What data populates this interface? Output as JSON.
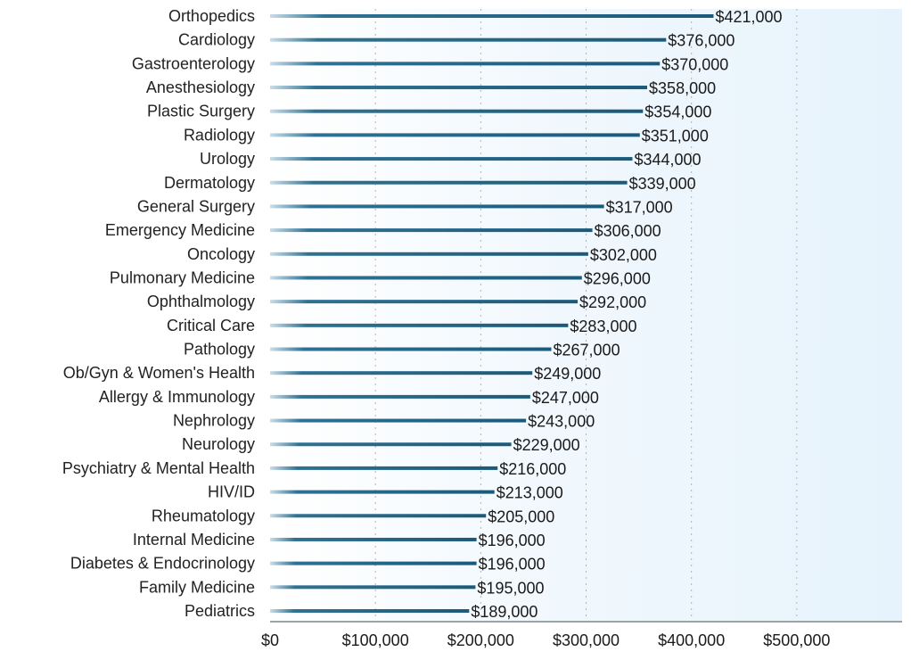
{
  "chart_data": {
    "type": "bar",
    "orientation": "horizontal",
    "title": "",
    "xlabel": "",
    "ylabel": "",
    "categories": [
      "Orthopedics",
      "Cardiology",
      "Gastroenterology",
      "Anesthesiology",
      "Plastic Surgery",
      "Radiology",
      "Urology",
      "Dermatology",
      "General Surgery",
      "Emergency Medicine",
      "Oncology",
      "Pulmonary Medicine",
      "Ophthalmology",
      "Critical Care",
      "Pathology",
      "Ob/Gyn & Women's Health",
      "Allergy & Immunology",
      "Nephrology",
      "Neurology",
      "Psychiatry & Mental Health",
      "HIV/ID",
      "Rheumatology",
      "Internal Medicine",
      "Diabetes & Endocrinology",
      "Family Medicine",
      "Pediatrics"
    ],
    "values": [
      421000,
      376000,
      370000,
      358000,
      354000,
      351000,
      344000,
      339000,
      317000,
      306000,
      302000,
      296000,
      292000,
      283000,
      267000,
      249000,
      247000,
      243000,
      229000,
      216000,
      213000,
      205000,
      196000,
      196000,
      195000,
      189000
    ],
    "value_labels": [
      "$421,000",
      "$376,000",
      "$370,000",
      "$358,000",
      "$354,000",
      "$351,000",
      "$344,000",
      "$339,000",
      "$317,000",
      "$306,000",
      "$302,000",
      "$296,000",
      "$292,000",
      "$283,000",
      "$267,000",
      "$249,000",
      "$247,000",
      "$243,000",
      "$229,000",
      "$216,000",
      "$213,000",
      "$205,000",
      "$196,000",
      "$196,000",
      "$195,000",
      "$189,000"
    ],
    "xticks": [
      0,
      100000,
      200000,
      300000,
      400000,
      500000
    ],
    "xtick_labels": [
      "$0",
      "$100,000",
      "$200,000",
      "$300,000",
      "$400,000",
      "$500,000"
    ],
    "xlim": [
      0,
      600000
    ],
    "grid": "vertical dotted",
    "colors": {
      "bar": "#1f5f80",
      "plot_bg": "#eaf5fc",
      "grid": "#a9b4bb",
      "axis": "#9aa3a8"
    }
  }
}
